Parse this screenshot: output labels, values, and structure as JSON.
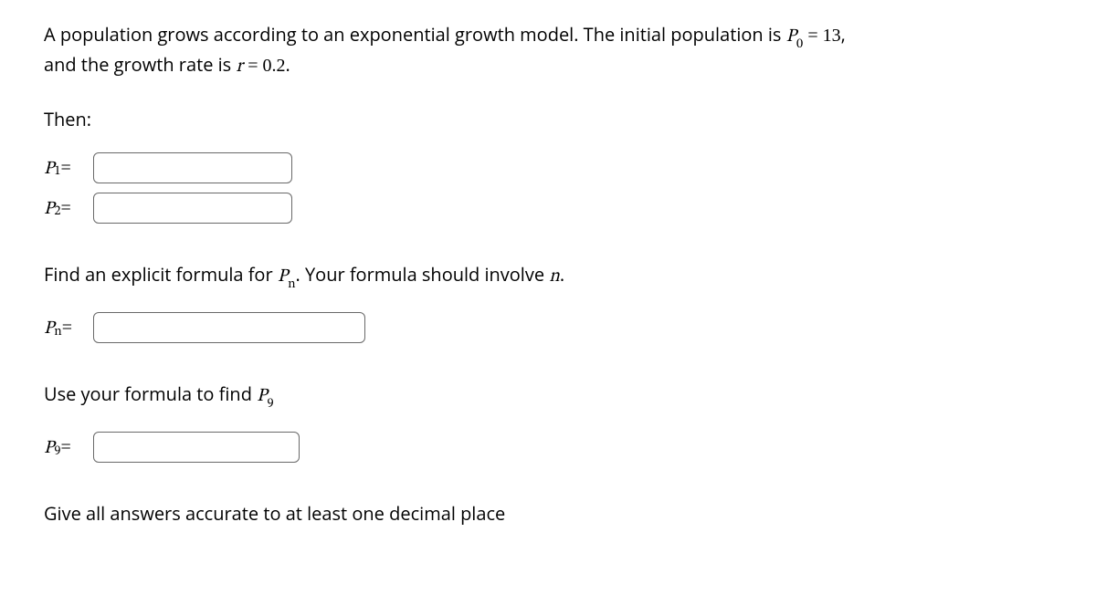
{
  "intro": {
    "text_before_P0": "A population grows according to an exponential growth model. The initial population is ",
    "P0_sym": "P",
    "P0_sub": "0",
    "eq": " = ",
    "P0_val": "13",
    "comma": ",",
    "text_before_r": "and the growth rate is ",
    "r_sym": "r",
    "r_eq": " = ",
    "r_val": "0.2",
    "period": "."
  },
  "then_label": "Then:",
  "p1": {
    "sym": "P",
    "sub": "1",
    "eq": " ="
  },
  "p2": {
    "sym": "P",
    "sub": "2",
    "eq": " ="
  },
  "formula_prompt": {
    "before": "Find an explicit formula for ",
    "Pn_sym": "P",
    "Pn_sub": "n",
    "after1": ". Your formula should involve ",
    "n_sym": "n",
    "after2": "."
  },
  "pn": {
    "sym": "P",
    "sub": "n",
    "eq": " ="
  },
  "p9_prompt": {
    "before": "Use your formula to find ",
    "sym": "P",
    "sub": "9"
  },
  "p9": {
    "sym": "P",
    "sub": "9",
    "eq": " ="
  },
  "footer": "Give all answers accurate to at least one decimal place"
}
